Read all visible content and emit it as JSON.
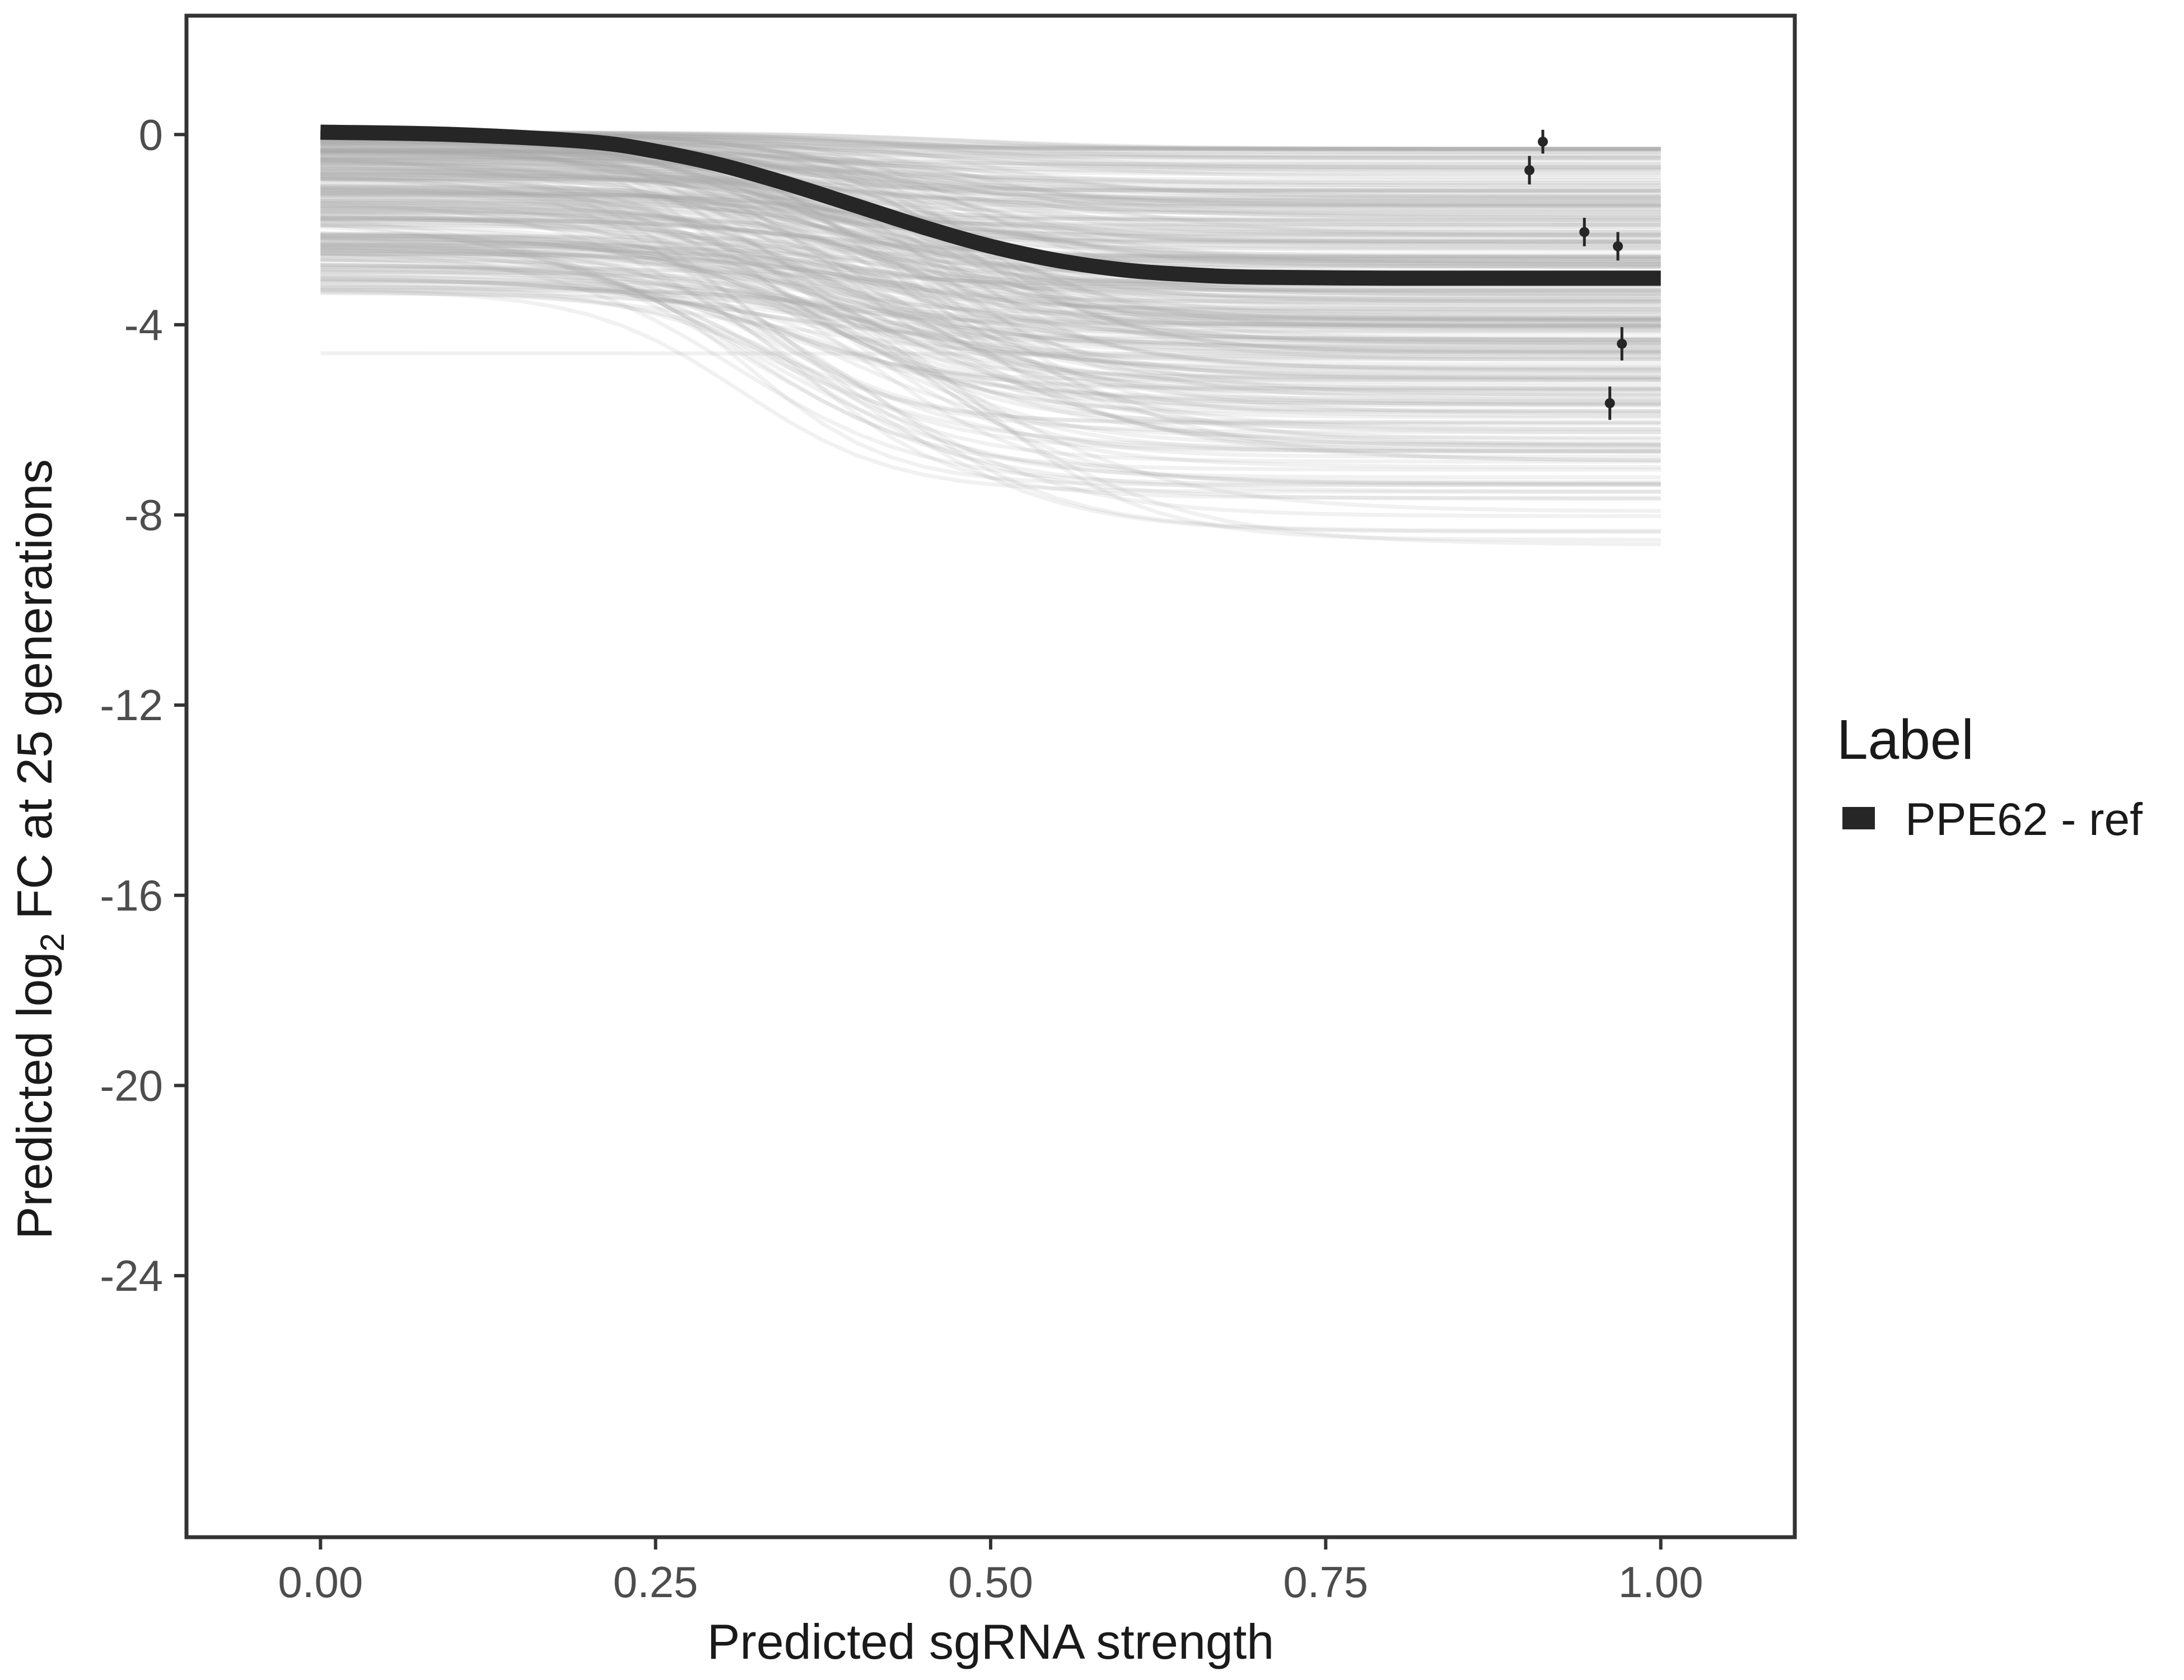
{
  "chart_data": {
    "type": "line",
    "title": "",
    "xlabel": "Predicted sgRNA strength",
    "ylabel_parts": {
      "before": "Predicted  log",
      "sub": "2",
      "after": " FC at 25 generations"
    },
    "xlim": [
      -0.1,
      1.1
    ],
    "ylim": [
      -29.5,
      2.5
    ],
    "x_ticks": [
      0,
      0.25,
      0.5,
      0.75,
      1
    ],
    "x_tick_labels": [
      "0.00",
      "0.25",
      "0.50",
      "0.75",
      "1.00"
    ],
    "y_ticks": [
      0,
      -4,
      -8,
      -12,
      -16,
      -20,
      -24
    ],
    "y_tick_labels": [
      "0",
      "-4",
      "-8",
      "-12",
      "-16",
      "-20",
      "-24"
    ],
    "grid": false,
    "legend": {
      "title": "Label",
      "position": "right",
      "entries": [
        {
          "label": "PPE62 - ref",
          "color": "#262626"
        }
      ]
    },
    "main_curve": {
      "name": "PPE62 - ref",
      "color": "#262626",
      "x": [
        0.0,
        0.1,
        0.2,
        0.25,
        0.3,
        0.35,
        0.4,
        0.45,
        0.5,
        0.55,
        0.6,
        0.65,
        0.7,
        0.8,
        0.9,
        1.0
      ],
      "y": [
        0.05,
        0.0,
        -0.15,
        -0.35,
        -0.65,
        -1.05,
        -1.5,
        -1.95,
        -2.35,
        -2.65,
        -2.85,
        -2.95,
        -3.0,
        -3.02,
        -3.02,
        -3.02
      ]
    },
    "posterior_draws": {
      "color": "#a6a6a6",
      "description_count": 300,
      "start_range": [
        -3.6,
        0.1
      ],
      "end_range": [
        -8.7,
        -0.3
      ],
      "outlier_start": -4.6
    },
    "points": [
      {
        "x": 0.902,
        "y": -0.75,
        "err": 0.3
      },
      {
        "x": 0.912,
        "y": -0.15,
        "err": 0.25
      },
      {
        "x": 0.943,
        "y": -2.05,
        "err": 0.3
      },
      {
        "x": 0.962,
        "y": -5.65,
        "err": 0.35
      },
      {
        "x": 0.968,
        "y": -2.35,
        "err": 0.3
      },
      {
        "x": 0.971,
        "y": -4.4,
        "err": 0.35
      }
    ]
  }
}
